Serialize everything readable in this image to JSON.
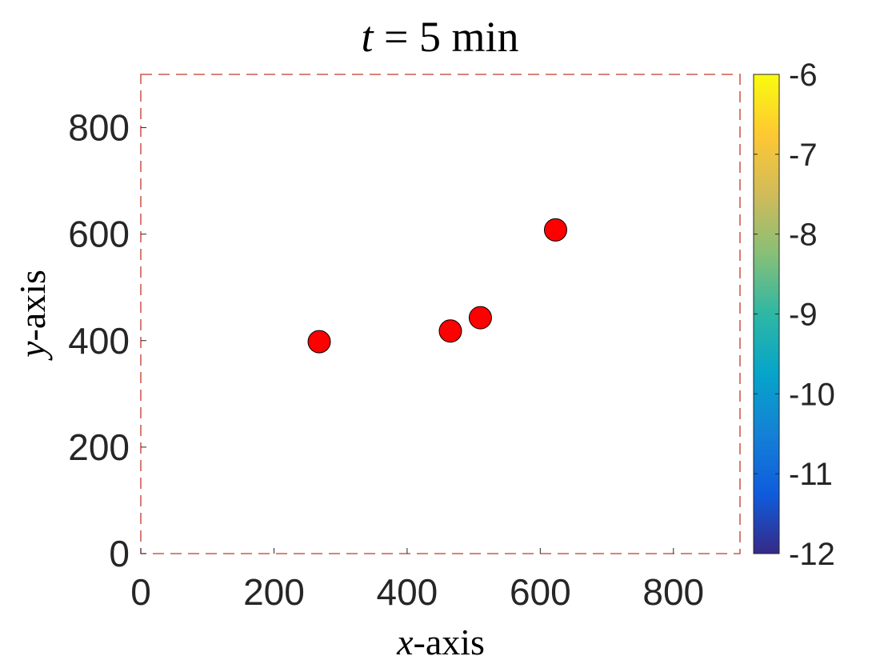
{
  "chart_data": {
    "type": "scatter",
    "title": {
      "var": "t",
      "eq": " = 5 min"
    },
    "xlabel": {
      "var": "x",
      "rest": "-axis"
    },
    "ylabel": {
      "var": "y",
      "rest": "-axis"
    },
    "xlim": [
      0,
      900
    ],
    "ylim": [
      0,
      900
    ],
    "xticks": [
      "0",
      "200",
      "400",
      "600",
      "800"
    ],
    "yticks": [
      "0",
      "200",
      "400",
      "600",
      "800"
    ],
    "points": [
      {
        "x": 268,
        "y": 398
      },
      {
        "x": 465,
        "y": 418
      },
      {
        "x": 510,
        "y": 443
      },
      {
        "x": 623,
        "y": 608
      }
    ],
    "marker_color": "#ff0000",
    "marker_edge_color": "#000000",
    "boundary_color": "#c0392b",
    "boundary_style": "dashed",
    "grid": false,
    "colorbar": {
      "colormap": "parula",
      "range": [
        -12,
        -6
      ],
      "ticks": [
        "-6",
        "-7",
        "-8",
        "-9",
        "-10",
        "-11",
        "-12"
      ],
      "colors": [
        "#352a87",
        "#0f5cdd",
        "#1481d6",
        "#06a4ca",
        "#2eb7a4",
        "#87bf77",
        "#d1bb59",
        "#fec832",
        "#f9fb0e"
      ]
    }
  }
}
